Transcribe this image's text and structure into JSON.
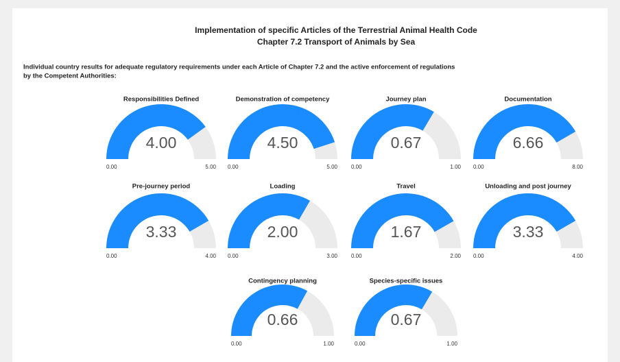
{
  "header": {
    "title": "Implementation of specific Articles of the Terrestrial Animal Health Code",
    "subtitle": "Chapter 7.2 Transport of Animals by Sea",
    "description_1": "Individual country results for adequate regulatory requirements under each Article of Chapter 7.2 and the active enforcement of regulations",
    "description_2": "by the Competent Authorities:"
  },
  "chart_data": [
    {
      "type": "gauge",
      "title": "Responsibilities Defined",
      "values": [
        4
      ],
      "value_labels": [
        "4.00"
      ],
      "ylim": [
        0,
        5
      ],
      "yticks": [
        {
          "value": 0,
          "label": "0.00"
        },
        {
          "value": 5,
          "label": "5.00"
        }
      ],
      "color": "#1a8cff"
    },
    {
      "type": "gauge",
      "title": "Demonstration of competency",
      "values": [
        4.5
      ],
      "value_labels": [
        "4.50"
      ],
      "ylim": [
        0,
        5
      ],
      "yticks": [
        {
          "value": 0,
          "label": "0.00"
        },
        {
          "value": 5,
          "label": "5.00"
        }
      ],
      "color": "#1a8cff"
    },
    {
      "type": "gauge",
      "title": "Journey plan",
      "values": [
        0.67
      ],
      "value_labels": [
        "0.67"
      ],
      "ylim": [
        0,
        1
      ],
      "yticks": [
        {
          "value": 0,
          "label": "0.00"
        },
        {
          "value": 1,
          "label": "1.00"
        }
      ],
      "color": "#1a8cff"
    },
    {
      "type": "gauge",
      "title": "Documentation",
      "values": [
        6.66
      ],
      "value_labels": [
        "6.66"
      ],
      "ylim": [
        0,
        8
      ],
      "yticks": [
        {
          "value": 0,
          "label": "0.00"
        },
        {
          "value": 8,
          "label": "8.00"
        }
      ],
      "color": "#1a8cff"
    },
    {
      "type": "gauge",
      "title": "Pre-journey period",
      "values": [
        3.33
      ],
      "value_labels": [
        "3.33"
      ],
      "ylim": [
        0,
        4
      ],
      "yticks": [
        {
          "value": 0,
          "label": "0.00"
        },
        {
          "value": 4,
          "label": "4.00"
        }
      ],
      "color": "#1a8cff"
    },
    {
      "type": "gauge",
      "title": "Loading",
      "values": [
        2
      ],
      "value_labels": [
        "2.00"
      ],
      "ylim": [
        0,
        3
      ],
      "yticks": [
        {
          "value": 0,
          "label": "0.00"
        },
        {
          "value": 3,
          "label": "3.00"
        }
      ],
      "color": "#1a8cff"
    },
    {
      "type": "gauge",
      "title": "Travel",
      "values": [
        1.67
      ],
      "value_labels": [
        "1.67"
      ],
      "ylim": [
        0,
        2
      ],
      "yticks": [
        {
          "value": 0,
          "label": "0.00"
        },
        {
          "value": 2,
          "label": "2.00"
        }
      ],
      "color": "#1a8cff"
    },
    {
      "type": "gauge",
      "title": "Unloading and post journey",
      "values": [
        3.33
      ],
      "value_labels": [
        "3.33"
      ],
      "ylim": [
        0,
        4
      ],
      "yticks": [
        {
          "value": 0,
          "label": "0.00"
        },
        {
          "value": 4,
          "label": "4.00"
        }
      ],
      "color": "#1a8cff"
    },
    {
      "type": "gauge",
      "title": "Contingency planning",
      "values": [
        0.66
      ],
      "value_labels": [
        "0.66"
      ],
      "ylim": [
        0,
        1
      ],
      "yticks": [
        {
          "value": 0,
          "label": "0.00"
        },
        {
          "value": 1,
          "label": "1.00"
        }
      ],
      "color": "#1a8cff"
    },
    {
      "type": "gauge",
      "title": "Species-specific issues",
      "values": [
        0.67
      ],
      "value_labels": [
        "0.67"
      ],
      "ylim": [
        0,
        1
      ],
      "yticks": [
        {
          "value": 0,
          "label": "0.00"
        },
        {
          "value": 1,
          "label": "1.00"
        }
      ],
      "color": "#1a8cff"
    }
  ]
}
